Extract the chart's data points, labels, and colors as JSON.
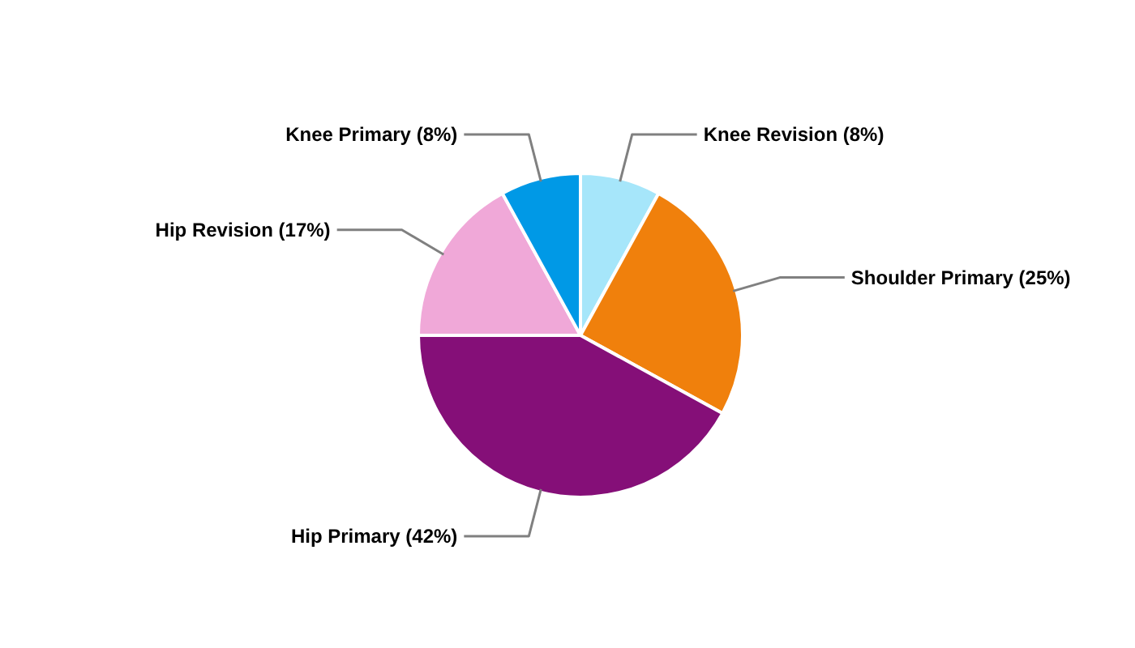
{
  "chart_data": {
    "type": "pie",
    "categories": [
      "Knee Revision",
      "Shoulder Primary",
      "Hip Primary",
      "Hip Revision",
      "Knee Primary"
    ],
    "values": [
      8,
      25,
      42,
      17,
      8
    ],
    "value_labels": [
      "(8%)",
      "(25%)",
      "(42%)",
      "(17%)",
      "(8%)"
    ],
    "colors": [
      "#a6e6fa",
      "#f0800c",
      "#850f78",
      "#f0a8d8",
      "#0099e6"
    ]
  }
}
